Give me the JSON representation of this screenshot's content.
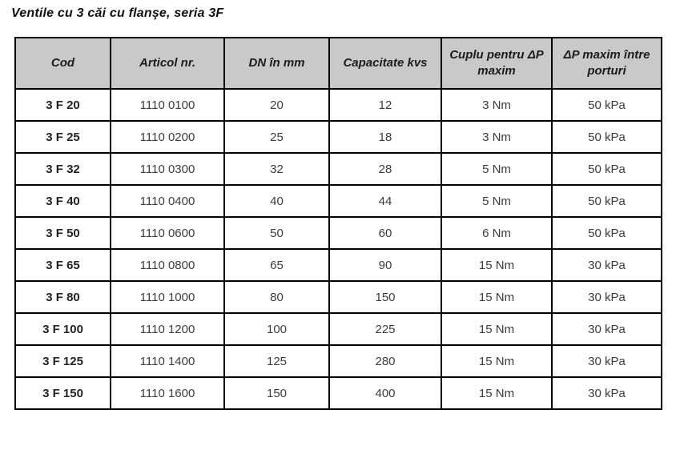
{
  "page": {
    "title": "Ventile cu 3 căi cu flanşe, seria 3F"
  },
  "colors": {
    "header_bg": "#c9c9c9",
    "border": "#000000",
    "cell_text": "#3c3c3c",
    "cod_text": "#232323",
    "title_text": "#111111",
    "page_bg": "#ffffff"
  },
  "table": {
    "columns": [
      "Cod",
      "Articol nr.",
      "DN în mm",
      "Capacitate kvs",
      "Cuplu pentru ΔP maxim",
      "ΔP maxim între porturi"
    ],
    "rows": [
      [
        "3 F 20",
        "1110 0100",
        "20",
        "12",
        "3 Nm",
        "50 kPa"
      ],
      [
        "3 F 25",
        "1110 0200",
        "25",
        "18",
        "3 Nm",
        "50 kPa"
      ],
      [
        "3 F 32",
        "1110 0300",
        "32",
        "28",
        "5 Nm",
        "50 kPa"
      ],
      [
        "3 F 40",
        "1110 0400",
        "40",
        "44",
        "5 Nm",
        "50 kPa"
      ],
      [
        "3 F 50",
        "1110 0600",
        "50",
        "60",
        "6 Nm",
        "50 kPa"
      ],
      [
        "3 F 65",
        "1110 0800",
        "65",
        "90",
        "15 Nm",
        "30 kPa"
      ],
      [
        "3 F 80",
        "1110 1000",
        "80",
        "150",
        "15 Nm",
        "30 kPa"
      ],
      [
        "3 F 100",
        "1110 1200",
        "100",
        "225",
        "15 Nm",
        "30 kPa"
      ],
      [
        "3 F 125",
        "1110 1400",
        "125",
        "280",
        "15 Nm",
        "30 kPa"
      ],
      [
        "3 F 150",
        "1110 1600",
        "150",
        "400",
        "15 Nm",
        "30 kPa"
      ]
    ]
  }
}
